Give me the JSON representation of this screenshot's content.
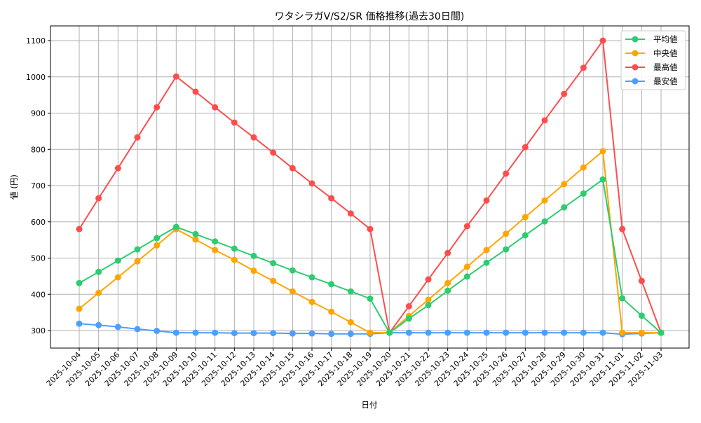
{
  "chart_data": {
    "type": "line",
    "title": "ワタシラガV/S2/SR 価格推移(過去30日間)",
    "xlabel": "日付",
    "ylabel": "値 (円)",
    "ylim": [
      250,
      1140
    ],
    "yticks": [
      300,
      400,
      500,
      600,
      700,
      800,
      900,
      1000,
      1100
    ],
    "grid": true,
    "legend_position": "upper right",
    "categories": [
      "2025-10-04",
      "2025-10-05",
      "2025-10-06",
      "2025-10-07",
      "2025-10-08",
      "2025-10-09",
      "2025-10-10",
      "2025-10-11",
      "2025-10-12",
      "2025-10-13",
      "2025-10-14",
      "2025-10-15",
      "2025-10-16",
      "2025-10-17",
      "2025-10-18",
      "2025-10-19",
      "2025-10-20",
      "2025-10-21",
      "2025-10-22",
      "2025-10-23",
      "2025-10-24",
      "2025-10-25",
      "2025-10-26",
      "2025-10-27",
      "2025-10-28",
      "2025-10-29",
      "2025-10-30",
      "2025-10-31",
      "2025-11-01",
      "2025-11-02",
      "2025-11-03"
    ],
    "series": [
      {
        "name": "平均値",
        "color": "#2ecc71",
        "values": [
          431,
          462,
          493,
          524,
          555,
          586,
          566,
          546,
          526,
          506,
          486,
          466,
          447,
          428,
          408,
          388,
          294,
          333,
          370,
          410,
          449,
          487,
          524,
          563,
          601,
          640,
          678,
          717,
          389,
          341,
          294
        ]
      },
      {
        "name": "中央値",
        "color": "#ffa500",
        "values": [
          360,
          404,
          447,
          491,
          535,
          580,
          551,
          522,
          495,
          465,
          437,
          408,
          379,
          352,
          323,
          294,
          294,
          340,
          385,
          431,
          476,
          522,
          567,
          613,
          659,
          704,
          750,
          795,
          294,
          294,
          294
        ]
      },
      {
        "name": "最高値",
        "color": "#ff4d4d",
        "values": [
          580,
          665,
          748,
          833,
          916,
          1001,
          959,
          916,
          874,
          833,
          791,
          748,
          706,
          665,
          623,
          580,
          294,
          367,
          441,
          514,
          588,
          659,
          733,
          806,
          880,
          953,
          1025,
          1100,
          580,
          437,
          294
        ]
      },
      {
        "name": "最安値",
        "color": "#4d9fff",
        "values": [
          319,
          315,
          310,
          304,
          299,
          294,
          294,
          294,
          293,
          293,
          293,
          292,
          292,
          291,
          291,
          291,
          294,
          294,
          294,
          294,
          294,
          294,
          294,
          294,
          294,
          294,
          294,
          294,
          290,
          292,
          294
        ]
      }
    ]
  }
}
